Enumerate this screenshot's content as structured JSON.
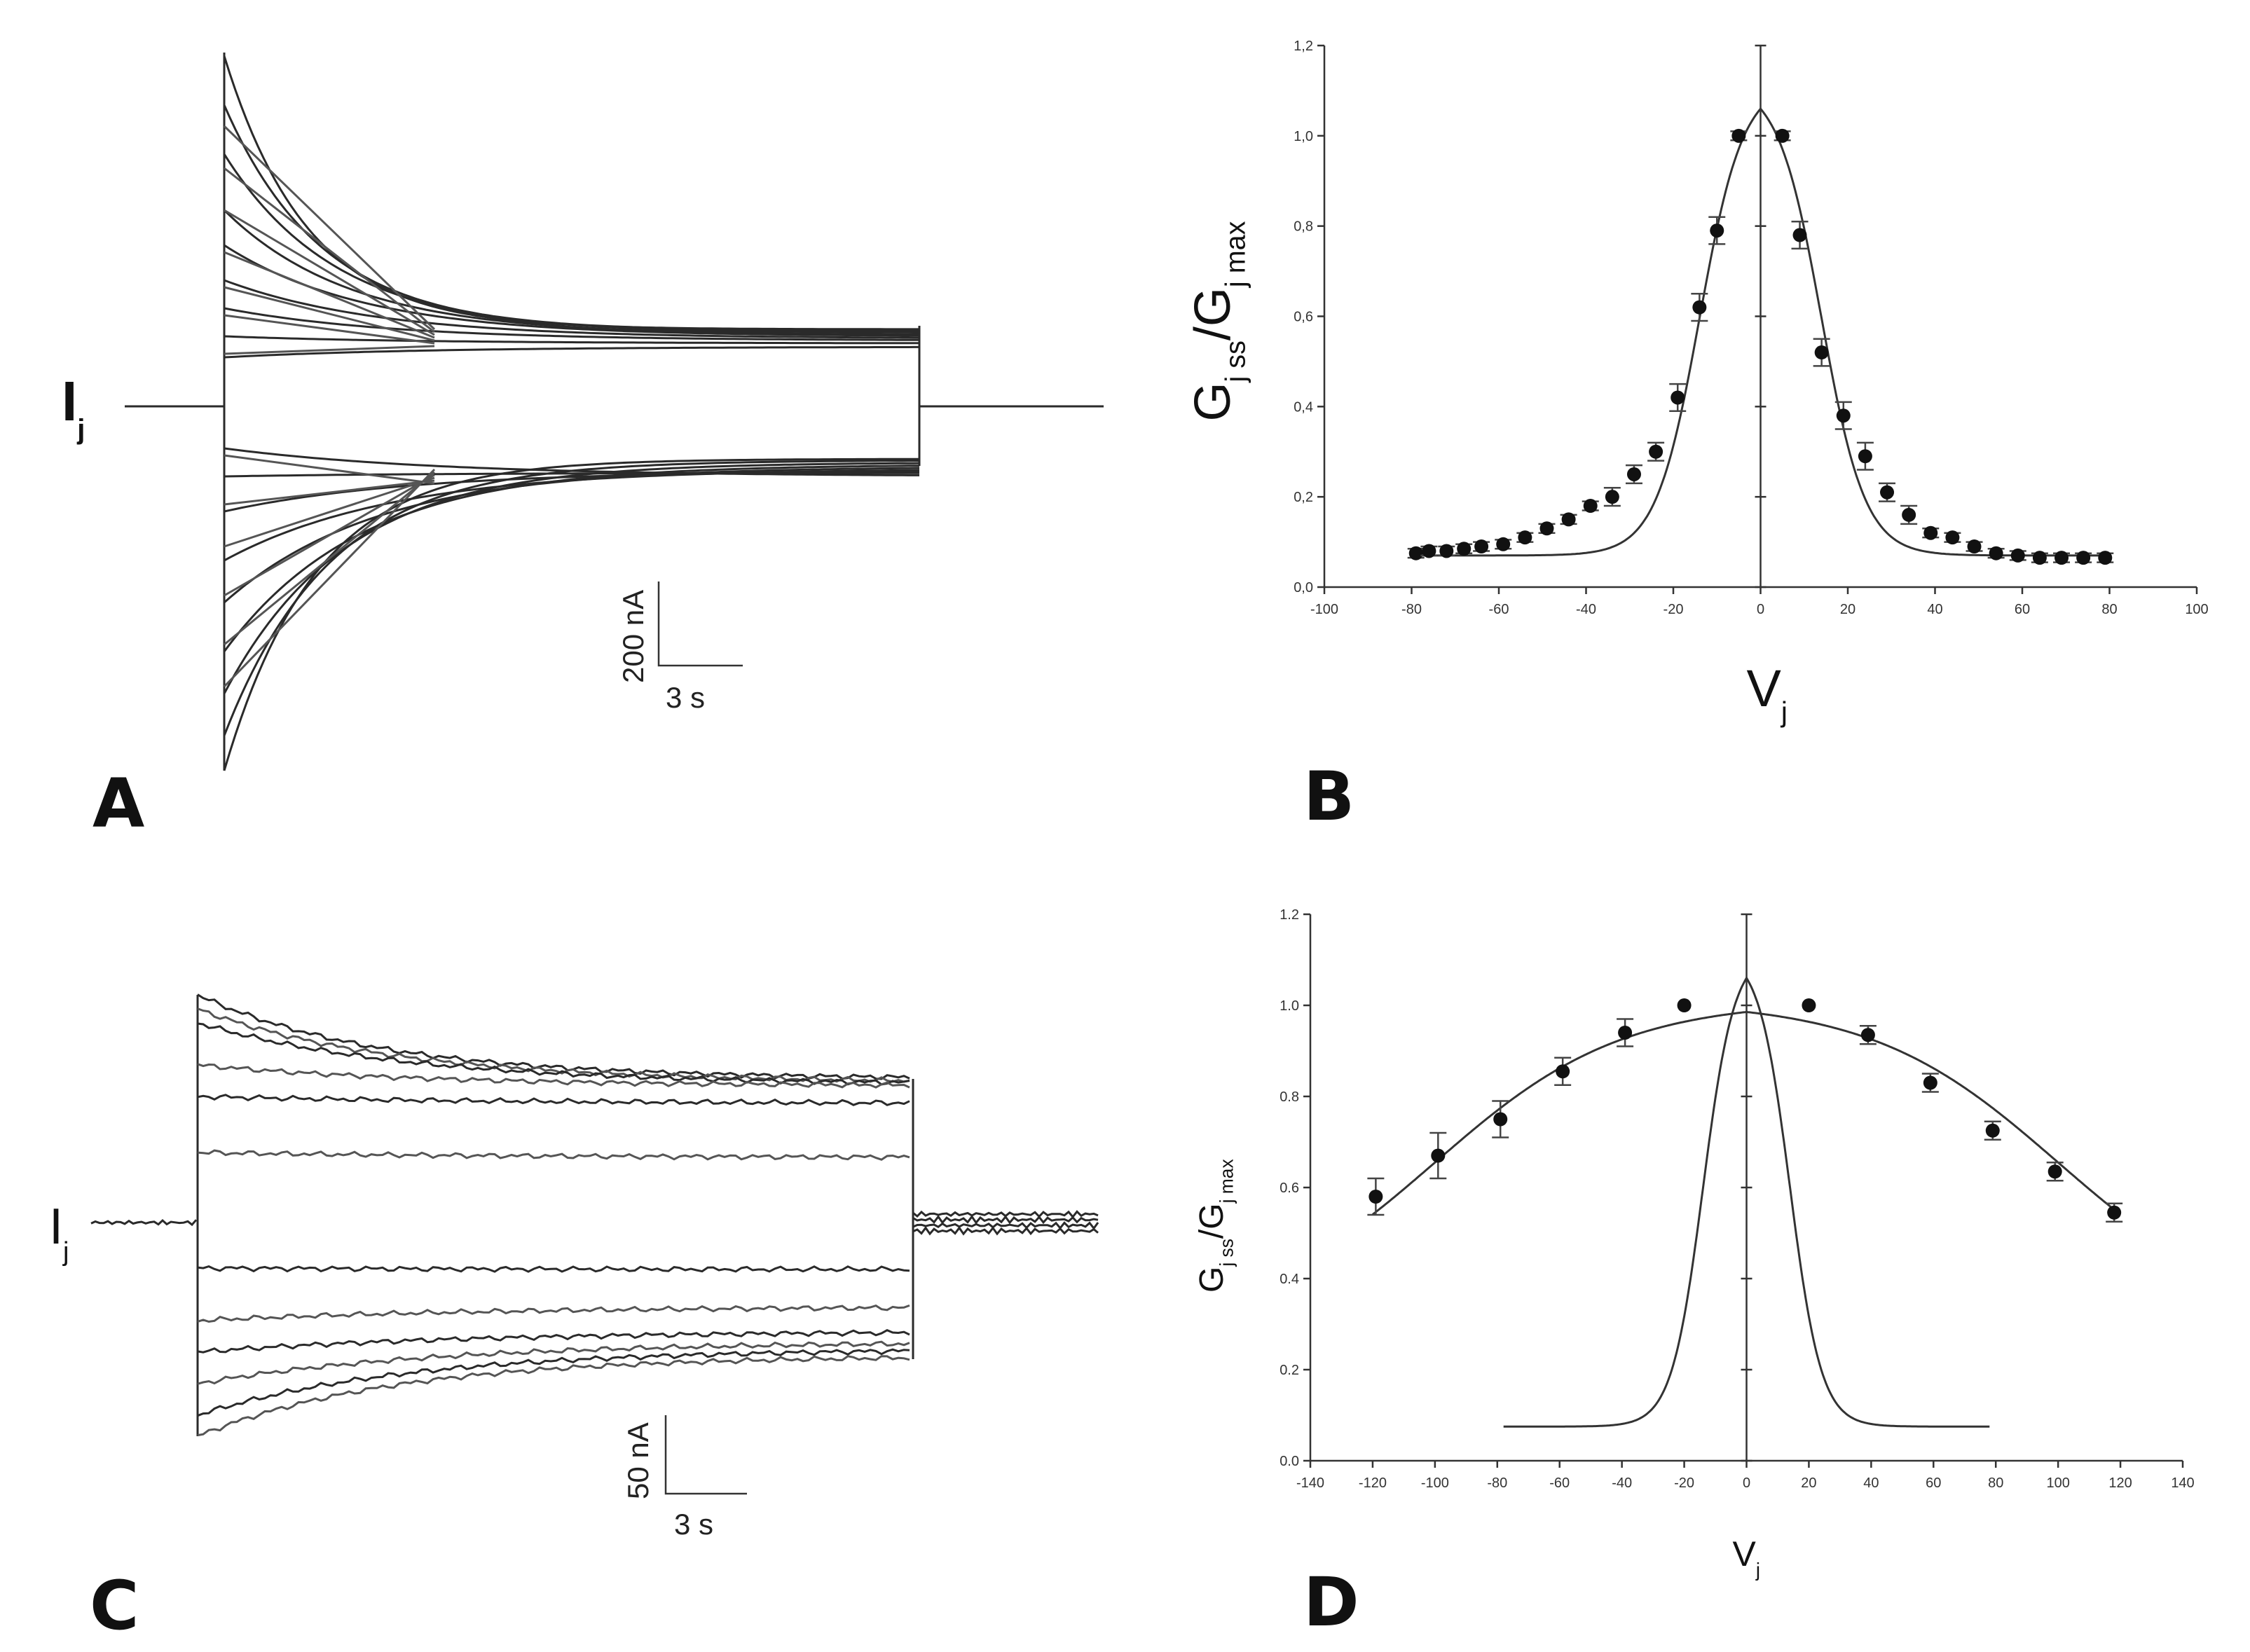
{
  "panels": {
    "A": {
      "letter": "A",
      "trace_label": "I",
      "trace_sub": "j",
      "scale_y": "200 nA",
      "scale_x": "3 s"
    },
    "B": {
      "letter": "B"
    },
    "C": {
      "letter": "C",
      "trace_label": "I",
      "trace_sub": "j",
      "scale_y": "50 nA",
      "scale_x": "3 s"
    },
    "D": {
      "letter": "D"
    }
  },
  "chart_data": [
    {
      "panel": "B",
      "type": "scatter",
      "ylabel_main": "G",
      "ylabel_sub1": "j ss",
      "ylabel_sep": "/G",
      "ylabel_sub2": "j max",
      "xlabel_main": "V",
      "xlabel_sub": "j",
      "xlim": [
        -100,
        100
      ],
      "ylim": [
        0,
        1.2
      ],
      "xticks": [
        "-100",
        "-80",
        "-60",
        "-40",
        "-20",
        "0",
        "20",
        "40",
        "60",
        "80",
        "100"
      ],
      "yticks": [
        "0,0",
        "0,2",
        "0,4",
        "0,6",
        "0,8",
        "1,0",
        "1,2"
      ],
      "points": [
        {
          "x": -79,
          "y": 0.075,
          "err": 0.01
        },
        {
          "x": -76,
          "y": 0.08,
          "err": 0.01
        },
        {
          "x": -72,
          "y": 0.08,
          "err": 0.01
        },
        {
          "x": -68,
          "y": 0.085,
          "err": 0.01
        },
        {
          "x": -64,
          "y": 0.09,
          "err": 0.01
        },
        {
          "x": -59,
          "y": 0.095,
          "err": 0.01
        },
        {
          "x": -54,
          "y": 0.11,
          "err": 0.01
        },
        {
          "x": -49,
          "y": 0.13,
          "err": 0.01
        },
        {
          "x": -44,
          "y": 0.15,
          "err": 0.01
        },
        {
          "x": -39,
          "y": 0.18,
          "err": 0.01
        },
        {
          "x": -34,
          "y": 0.2,
          "err": 0.02
        },
        {
          "x": -29,
          "y": 0.25,
          "err": 0.02
        },
        {
          "x": -24,
          "y": 0.3,
          "err": 0.02
        },
        {
          "x": -19,
          "y": 0.42,
          "err": 0.03
        },
        {
          "x": -14,
          "y": 0.62,
          "err": 0.03
        },
        {
          "x": -10,
          "y": 0.79,
          "err": 0.03
        },
        {
          "x": -5,
          "y": 1.0,
          "err": 0.01
        },
        {
          "x": 5,
          "y": 1.0,
          "err": 0.01
        },
        {
          "x": 9,
          "y": 0.78,
          "err": 0.03
        },
        {
          "x": 14,
          "y": 0.52,
          "err": 0.03
        },
        {
          "x": 19,
          "y": 0.38,
          "err": 0.03
        },
        {
          "x": 24,
          "y": 0.29,
          "err": 0.03
        },
        {
          "x": 29,
          "y": 0.21,
          "err": 0.02
        },
        {
          "x": 34,
          "y": 0.16,
          "err": 0.02
        },
        {
          "x": 39,
          "y": 0.12,
          "err": 0.01
        },
        {
          "x": 44,
          "y": 0.11,
          "err": 0.01
        },
        {
          "x": 49,
          "y": 0.09,
          "err": 0.01
        },
        {
          "x": 54,
          "y": 0.075,
          "err": 0.01
        },
        {
          "x": 59,
          "y": 0.07,
          "err": 0.01
        },
        {
          "x": 64,
          "y": 0.065,
          "err": 0.01
        },
        {
          "x": 69,
          "y": 0.065,
          "err": 0.01
        },
        {
          "x": 74,
          "y": 0.065,
          "err": 0.01
        },
        {
          "x": 79,
          "y": 0.065,
          "err": 0.01
        }
      ],
      "fit": {
        "ymin": 0.07,
        "peak": 1.12,
        "v0": 14,
        "slope": 5
      }
    },
    {
      "panel": "D",
      "type": "scatter",
      "ylabel_main": "G",
      "ylabel_sub1": "j ss",
      "ylabel_sep": "/G",
      "ylabel_sub2": "j max",
      "xlabel_main": "V",
      "xlabel_sub": "j",
      "xlim": [
        -140,
        140
      ],
      "ylim": [
        0,
        1.2
      ],
      "xticks": [
        "-140",
        "-120",
        "-100",
        "-80",
        "-60",
        "-40",
        "-20",
        "0",
        "20",
        "40",
        "60",
        "80",
        "100",
        "120",
        "140"
      ],
      "yticks": [
        "0.0",
        "0.2",
        "0.4",
        "0.6",
        "0.8",
        "1.0",
        "1.2"
      ],
      "points": [
        {
          "x": -119,
          "y": 0.58,
          "err": 0.04
        },
        {
          "x": -99,
          "y": 0.67,
          "err": 0.05
        },
        {
          "x": -79,
          "y": 0.75,
          "err": 0.04
        },
        {
          "x": -59,
          "y": 0.855,
          "err": 0.03
        },
        {
          "x": -39,
          "y": 0.94,
          "err": 0.03
        },
        {
          "x": -20,
          "y": 1.0,
          "err": 0.0
        },
        {
          "x": 20,
          "y": 1.0,
          "err": 0.0
        },
        {
          "x": 39,
          "y": 0.935,
          "err": 0.02
        },
        {
          "x": 59,
          "y": 0.83,
          "err": 0.02
        },
        {
          "x": 79,
          "y": 0.725,
          "err": 0.02
        },
        {
          "x": 99,
          "y": 0.635,
          "err": 0.02
        },
        {
          "x": 118,
          "y": 0.545,
          "err": 0.02
        }
      ],
      "fit_wide": {
        "ymin": 0.3,
        "peak": 1.01,
        "v0": 100,
        "slope": 30
      },
      "fit_narrow": {
        "ymin": 0.075,
        "peak": 1.12,
        "v0": 14,
        "slope": 5,
        "xrange": [
          -78,
          78
        ]
      }
    }
  ]
}
